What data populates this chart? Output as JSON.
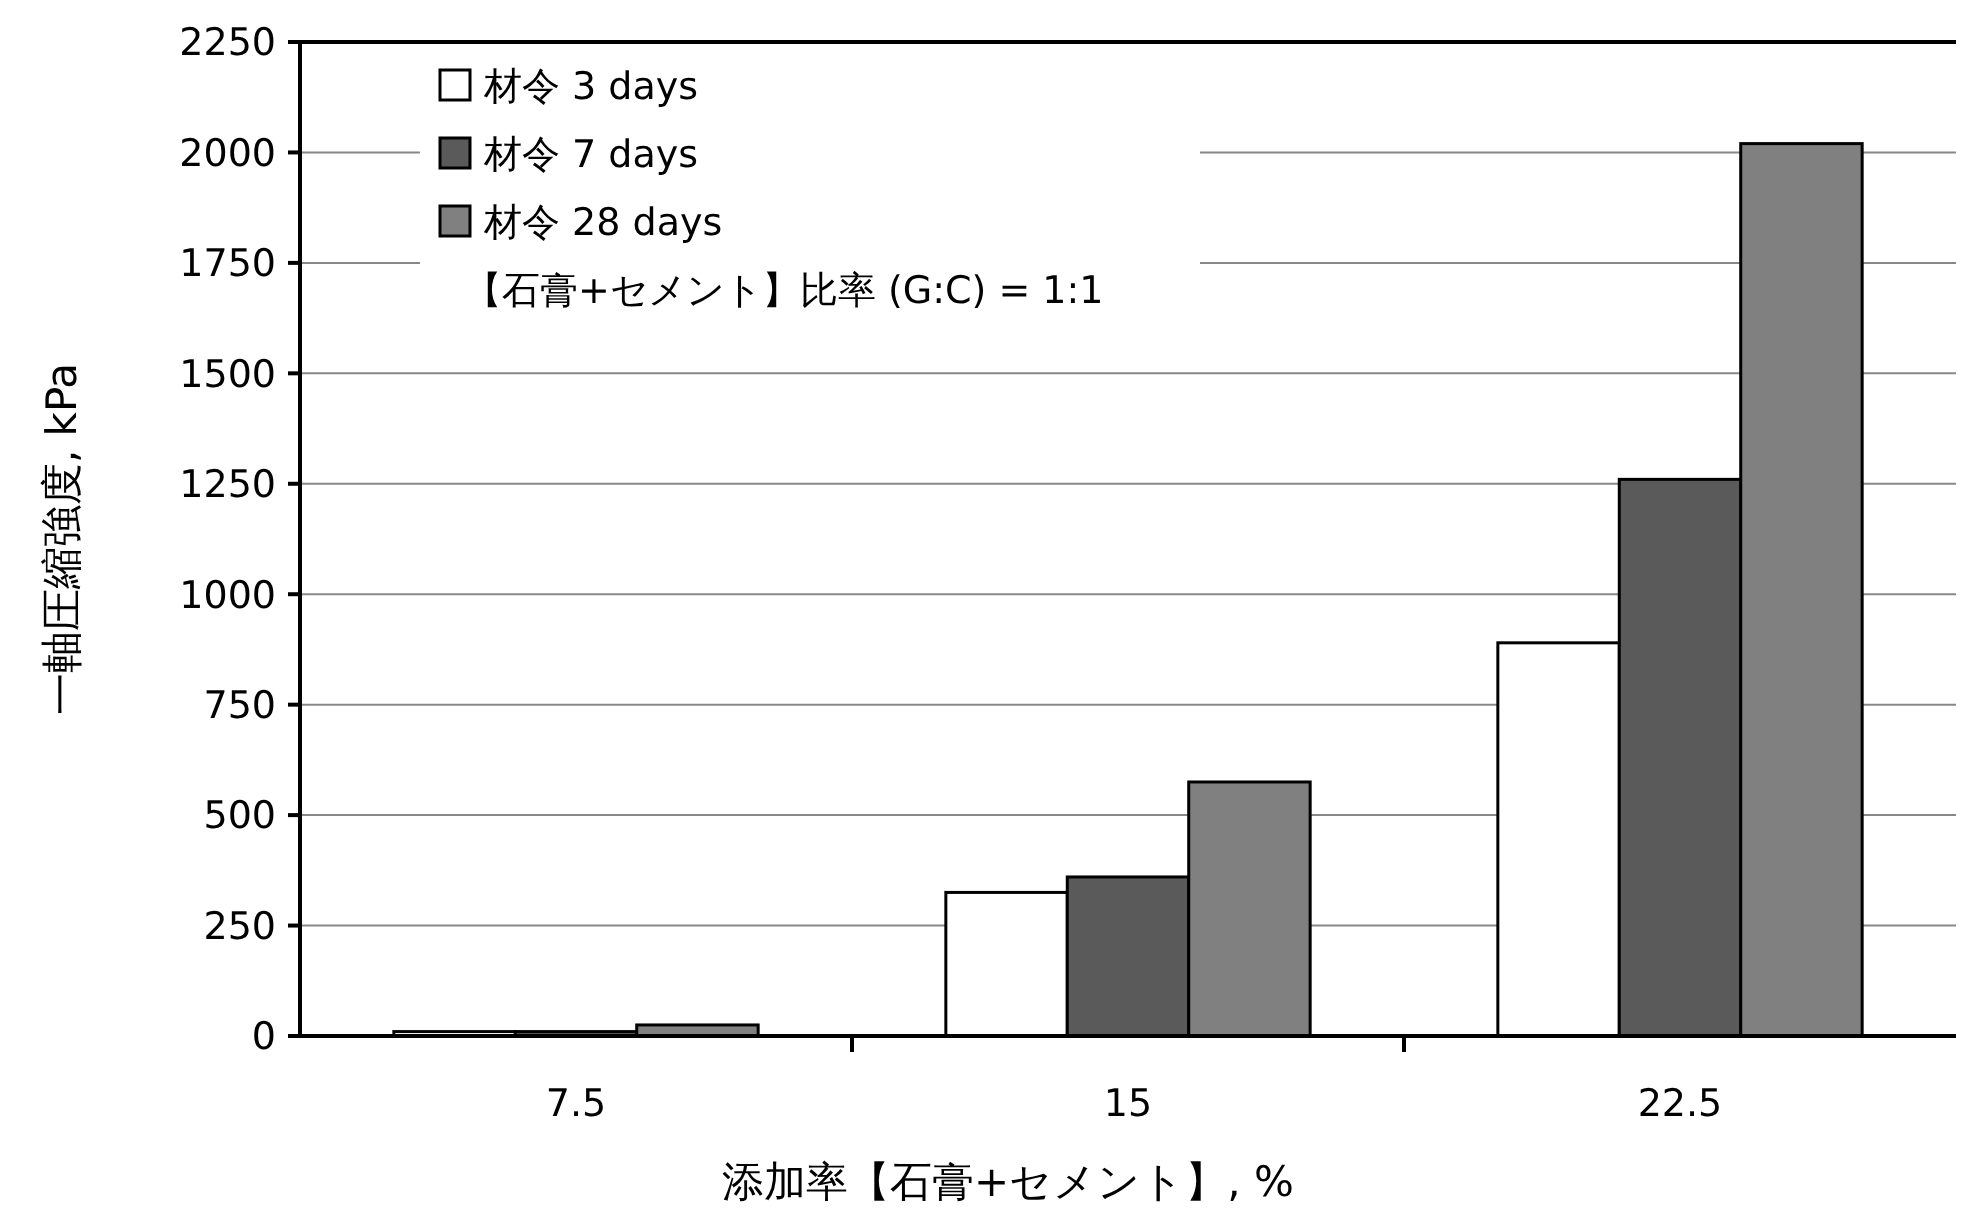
{
  "chart_data": {
    "type": "bar",
    "xlabel": "添加率【石膏+セメント】, %",
    "ylabel": "一軸圧縮強度, kPa",
    "categories": [
      "7.5",
      "15",
      "22.5"
    ],
    "series": [
      {
        "name": "材令 3 days",
        "color": "#ffffff",
        "values": [
          10,
          325,
          890
        ]
      },
      {
        "name": "材令 7 days",
        "color": "#5a5a5a",
        "values": [
          10,
          360,
          1260
        ]
      },
      {
        "name": "材令 28 days",
        "color": "#808080",
        "values": [
          25,
          575,
          2020
        ]
      }
    ],
    "ylim": [
      0,
      2250
    ],
    "yticks": [
      0,
      250,
      500,
      750,
      1000,
      1250,
      1500,
      1750,
      2000,
      2250
    ],
    "grid": "y",
    "legend": "top left",
    "annotations": [
      "【石膏+セメント】比率 (G:C) = 1:1"
    ]
  }
}
